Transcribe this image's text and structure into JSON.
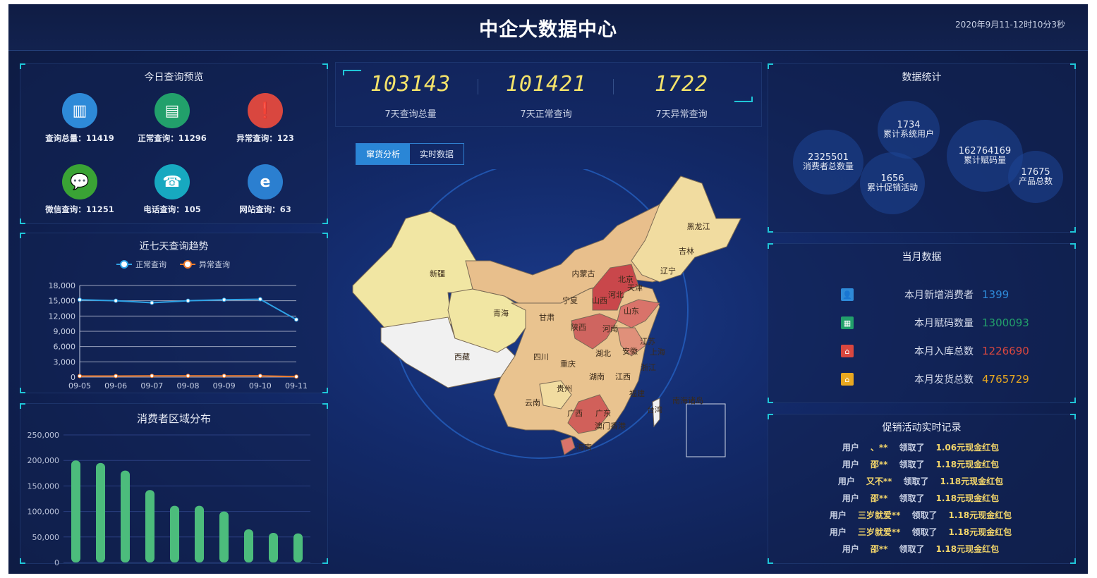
{
  "header": {
    "title": "中企大数据中心",
    "datetime": "2020年9月11-12时10分3秒"
  },
  "today": {
    "title": "今日查询预览",
    "items": [
      {
        "label": "查询总量：11419",
        "icon": "monitor-chart-icon",
        "color": "#2e8ad8"
      },
      {
        "label": "正常查询：11296",
        "icon": "cash-register-icon",
        "color": "#22a06b"
      },
      {
        "label": "异常查询：123",
        "icon": "alert-document-icon",
        "color": "#d9473f"
      },
      {
        "label": "微信查询：11251",
        "icon": "wechat-icon",
        "color": "#3aa335"
      },
      {
        "label": "电话查询：105",
        "icon": "telephone-icon",
        "color": "#17a9c0"
      },
      {
        "label": "网站查询：63",
        "icon": "ie-browser-icon",
        "color": "#2b7fd0"
      }
    ]
  },
  "trend": {
    "title": "近七天查询趋势",
    "legend": [
      "正常查询",
      "异常查询"
    ]
  },
  "region": {
    "title": "消费者区域分布"
  },
  "kpis": [
    {
      "value": "103143",
      "label": "7天查询总量"
    },
    {
      "value": "101421",
      "label": "7天正常查询"
    },
    {
      "value": "1722",
      "label": "7天异常查询"
    }
  ],
  "tabs": [
    "窜货分析",
    "实时数据"
  ],
  "map": {
    "provinces": [
      "新疆",
      "西藏",
      "青海",
      "甘肃",
      "宁夏",
      "内蒙古",
      "黑龙江",
      "吉林",
      "辽宁",
      "北京",
      "天津",
      "河北",
      "山西",
      "山东",
      "陕西",
      "河南",
      "四川",
      "重庆",
      "湖北",
      "安徽",
      "江苏",
      "上海",
      "浙江",
      "湖南",
      "江西",
      "贵州",
      "云南",
      "广西",
      "广东",
      "福建",
      "台湾",
      "澳门香港",
      "海南",
      "南海诸岛"
    ]
  },
  "stats": {
    "title": "数据统计",
    "bubbles": [
      {
        "value": "2325501",
        "label": "消费者总数量"
      },
      {
        "value": "1734",
        "label": "累计系统用户"
      },
      {
        "value": "1656",
        "label": "累计促销活动"
      },
      {
        "value": "162764169",
        "label": "累计赋码量"
      },
      {
        "value": "17675",
        "label": "产品总数"
      }
    ]
  },
  "monthly": {
    "title": "当月数据",
    "rows": [
      {
        "label": "本月新增消费者",
        "value": "1399",
        "color": "#2e8ad8",
        "icon": "user-icon"
      },
      {
        "label": "本月赋码数量",
        "value": "1300093",
        "color": "#22a06b",
        "icon": "qr-code-icon"
      },
      {
        "label": "本月入库总数",
        "value": "1226690",
        "color": "#d9473f",
        "icon": "warehouse-in-icon"
      },
      {
        "label": "本月发货总数",
        "value": "4765729",
        "color": "#e8a820",
        "icon": "warehouse-out-icon"
      }
    ]
  },
  "promo": {
    "title": "促销活动实时记录",
    "rows": [
      {
        "prefix": "用户",
        "user": "、**",
        "action": "领取了",
        "prize": "1.06元现金红包"
      },
      {
        "prefix": "用户",
        "user": "邵**",
        "action": "领取了",
        "prize": "1.18元现金红包"
      },
      {
        "prefix": "用户",
        "user": "又不**",
        "action": "领取了",
        "prize": "1.18元现金红包"
      },
      {
        "prefix": "用户",
        "user": "邵**",
        "action": "领取了",
        "prize": "1.18元现金红包"
      },
      {
        "prefix": "用户",
        "user": "三岁就爱**",
        "action": "领取了",
        "prize": "1.18元现金红包"
      },
      {
        "prefix": "用户",
        "user": "三岁就爱**",
        "action": "领取了",
        "prize": "1.18元现金红包"
      },
      {
        "prefix": "用户",
        "user": "邵**",
        "action": "领取了",
        "prize": "1.18元现金红包"
      }
    ]
  },
  "chart_data": [
    {
      "type": "line",
      "title": "近七天查询趋势",
      "x": [
        "09-05",
        "09-06",
        "09-07",
        "09-08",
        "09-09",
        "09-10",
        "09-11"
      ],
      "series": [
        {
          "name": "正常查询",
          "values": [
            15200,
            15000,
            14600,
            15000,
            15200,
            15300,
            11300
          ],
          "color": "#2fa3e6"
        },
        {
          "name": "异常查询",
          "values": [
            200,
            200,
            250,
            250,
            250,
            250,
            100
          ],
          "color": "#f07a2a"
        }
      ],
      "yticks": [
        "0",
        "3,000",
        "6,000",
        "9,000",
        "12,000",
        "15,000",
        "18,000"
      ],
      "ylim": [
        0,
        18000
      ],
      "grid": true,
      "legend": "top"
    },
    {
      "type": "bar",
      "title": "消费者区域分布",
      "values": [
        200000,
        195000,
        180000,
        142000,
        111000,
        111000,
        100000,
        65000,
        58000,
        57000
      ],
      "yticks": [
        "0",
        "50,000",
        "100,000",
        "150,000",
        "200,000",
        "250,000"
      ],
      "ylim": [
        0,
        250000
      ],
      "color": "#4cbc7c"
    }
  ]
}
